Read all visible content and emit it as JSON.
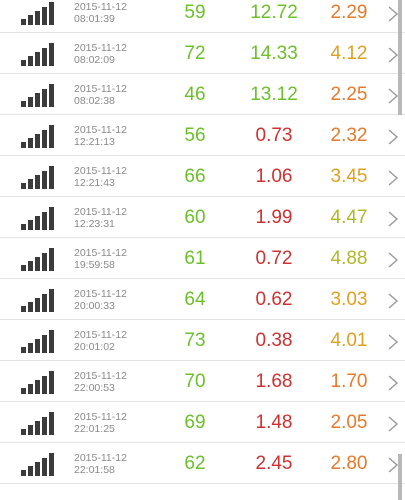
{
  "colors": {
    "green": "#6cc02a",
    "red": "#d03030",
    "orange": "#e8792a",
    "amber": "#e0a020",
    "olive": "#b0b82a"
  },
  "icons": {
    "signal": "signal-strength-icon",
    "chevron": "chevron-right-icon"
  },
  "rows": [
    {
      "date": "2015-11-12",
      "time": "08:01:39",
      "v1": "59",
      "v2": "12.72",
      "v3": "2.29",
      "c1": "#6cc02a",
      "c2": "#6cc02a",
      "c3": "#e8792a"
    },
    {
      "date": "2015-11-12",
      "time": "08:02:09",
      "v1": "72",
      "v2": "14.33",
      "v3": "4.12",
      "c1": "#6cc02a",
      "c2": "#6cc02a",
      "c3": "#e0a020"
    },
    {
      "date": "2015-11-12",
      "time": "08:02:38",
      "v1": "46",
      "v2": "13.12",
      "v3": "2.25",
      "c1": "#6cc02a",
      "c2": "#6cc02a",
      "c3": "#e8792a"
    },
    {
      "date": "2015-11-12",
      "time": "12:21:13",
      "v1": "56",
      "v2": "0.73",
      "v3": "2.32",
      "c1": "#6cc02a",
      "c2": "#d03030",
      "c3": "#e8792a"
    },
    {
      "date": "2015-11-12",
      "time": "12:21:43",
      "v1": "66",
      "v2": "1.06",
      "v3": "3.45",
      "c1": "#6cc02a",
      "c2": "#d03030",
      "c3": "#e0a020"
    },
    {
      "date": "2015-11-12",
      "time": "12:23:31",
      "v1": "60",
      "v2": "1.99",
      "v3": "4.47",
      "c1": "#6cc02a",
      "c2": "#d03030",
      "c3": "#b0b82a"
    },
    {
      "date": "2015-11-12",
      "time": "19:59:58",
      "v1": "61",
      "v2": "0.72",
      "v3": "4.88",
      "c1": "#6cc02a",
      "c2": "#d03030",
      "c3": "#b0b82a"
    },
    {
      "date": "2015-11-12",
      "time": "20:00:33",
      "v1": "64",
      "v2": "0.62",
      "v3": "3.03",
      "c1": "#6cc02a",
      "c2": "#d03030",
      "c3": "#e0a020"
    },
    {
      "date": "2015-11-12",
      "time": "20:01:02",
      "v1": "73",
      "v2": "0.38",
      "v3": "4.01",
      "c1": "#6cc02a",
      "c2": "#d03030",
      "c3": "#e0a020"
    },
    {
      "date": "2015-11-12",
      "time": "22:00:53",
      "v1": "70",
      "v2": "1.68",
      "v3": "1.70",
      "c1": "#6cc02a",
      "c2": "#d03030",
      "c3": "#e8792a"
    },
    {
      "date": "2015-11-12",
      "time": "22:01:25",
      "v1": "69",
      "v2": "1.48",
      "v3": "2.05",
      "c1": "#6cc02a",
      "c2": "#d03030",
      "c3": "#e8792a"
    },
    {
      "date": "2015-11-12",
      "time": "22:01:58",
      "v1": "62",
      "v2": "2.45",
      "v3": "2.80",
      "c1": "#6cc02a",
      "c2": "#d03030",
      "c3": "#e8792a"
    }
  ]
}
